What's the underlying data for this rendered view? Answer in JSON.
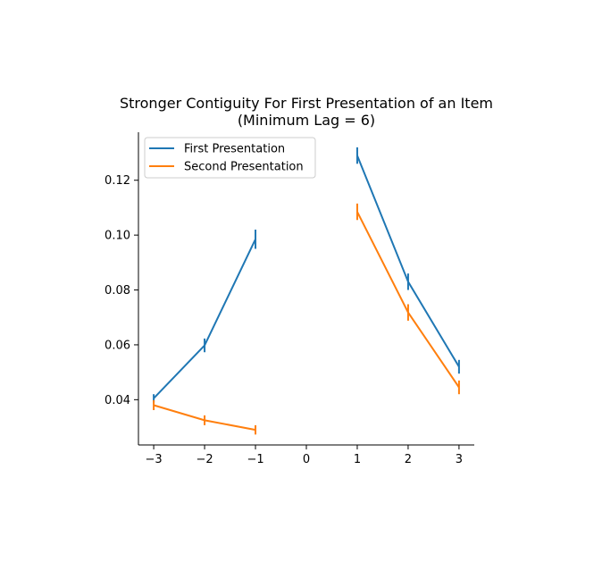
{
  "chart_data": {
    "type": "line",
    "title": "Stronger Contiguity For First Presentation of an Item",
    "subtitle": "(Minimum Lag = 6)",
    "xlabel": "",
    "ylabel": "",
    "x_ticks": [
      -3,
      -2,
      -1,
      0,
      1,
      2,
      3
    ],
    "y_ticks": [
      0.04,
      0.06,
      0.08,
      0.1,
      0.12
    ],
    "y_tick_labels": [
      "0.04",
      "0.06",
      "0.08",
      "0.10",
      "0.12"
    ],
    "xlim": [
      -3.3,
      3.3
    ],
    "ylim": [
      0.0235,
      0.1375
    ],
    "grid": false,
    "legend_position": "top-left",
    "series": [
      {
        "name": "First Presentation",
        "color": "#1f77b4",
        "segments": [
          {
            "x": [
              -3,
              -2,
              -1
            ],
            "y": [
              0.0405,
              0.0598,
              0.0985
            ],
            "err": [
              0.0015,
              0.0025,
              0.0035
            ]
          },
          {
            "x": [
              1,
              2,
              3
            ],
            "y": [
              0.129,
              0.083,
              0.052
            ],
            "err": [
              0.003,
              0.003,
              0.0025
            ]
          }
        ]
      },
      {
        "name": "Second Presentation",
        "color": "#ff7f0e",
        "segments": [
          {
            "x": [
              -3,
              -2,
              -1
            ],
            "y": [
              0.038,
              0.0325,
              0.029
            ],
            "err": [
              0.0018,
              0.0018,
              0.0017
            ]
          },
          {
            "x": [
              1,
              2,
              3
            ],
            "y": [
              0.1085,
              0.0718,
              0.0445
            ],
            "err": [
              0.003,
              0.003,
              0.0025
            ]
          }
        ]
      }
    ]
  }
}
